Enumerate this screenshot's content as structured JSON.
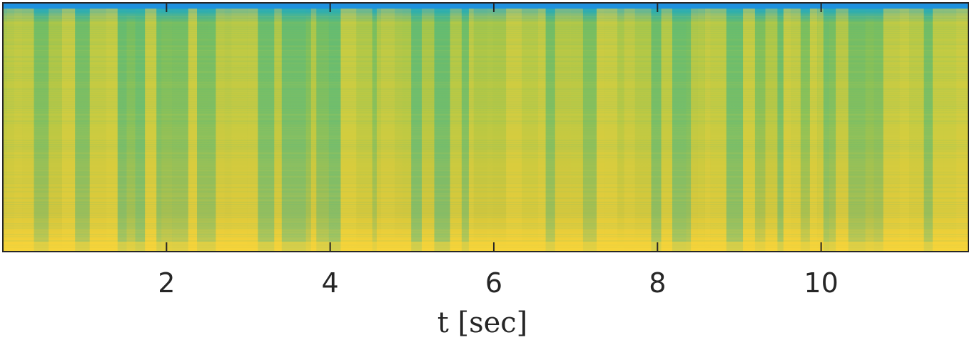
{
  "chart_data": {
    "type": "heatmap",
    "title": "",
    "xlabel": "t [sec]",
    "ylabel": "",
    "xlim": [
      0,
      11.8
    ],
    "xticks": [
      2,
      4,
      6,
      8,
      10
    ],
    "xtick_labels": [
      "2",
      "4",
      "6",
      "8",
      "10"
    ],
    "yticks": [],
    "colormap": "parula",
    "colors": {
      "low": "#1f8fe0",
      "mid": "#2db5a0",
      "high": "#f5d43a",
      "frame": "#262626"
    },
    "grid": false,
    "legend": "none"
  }
}
